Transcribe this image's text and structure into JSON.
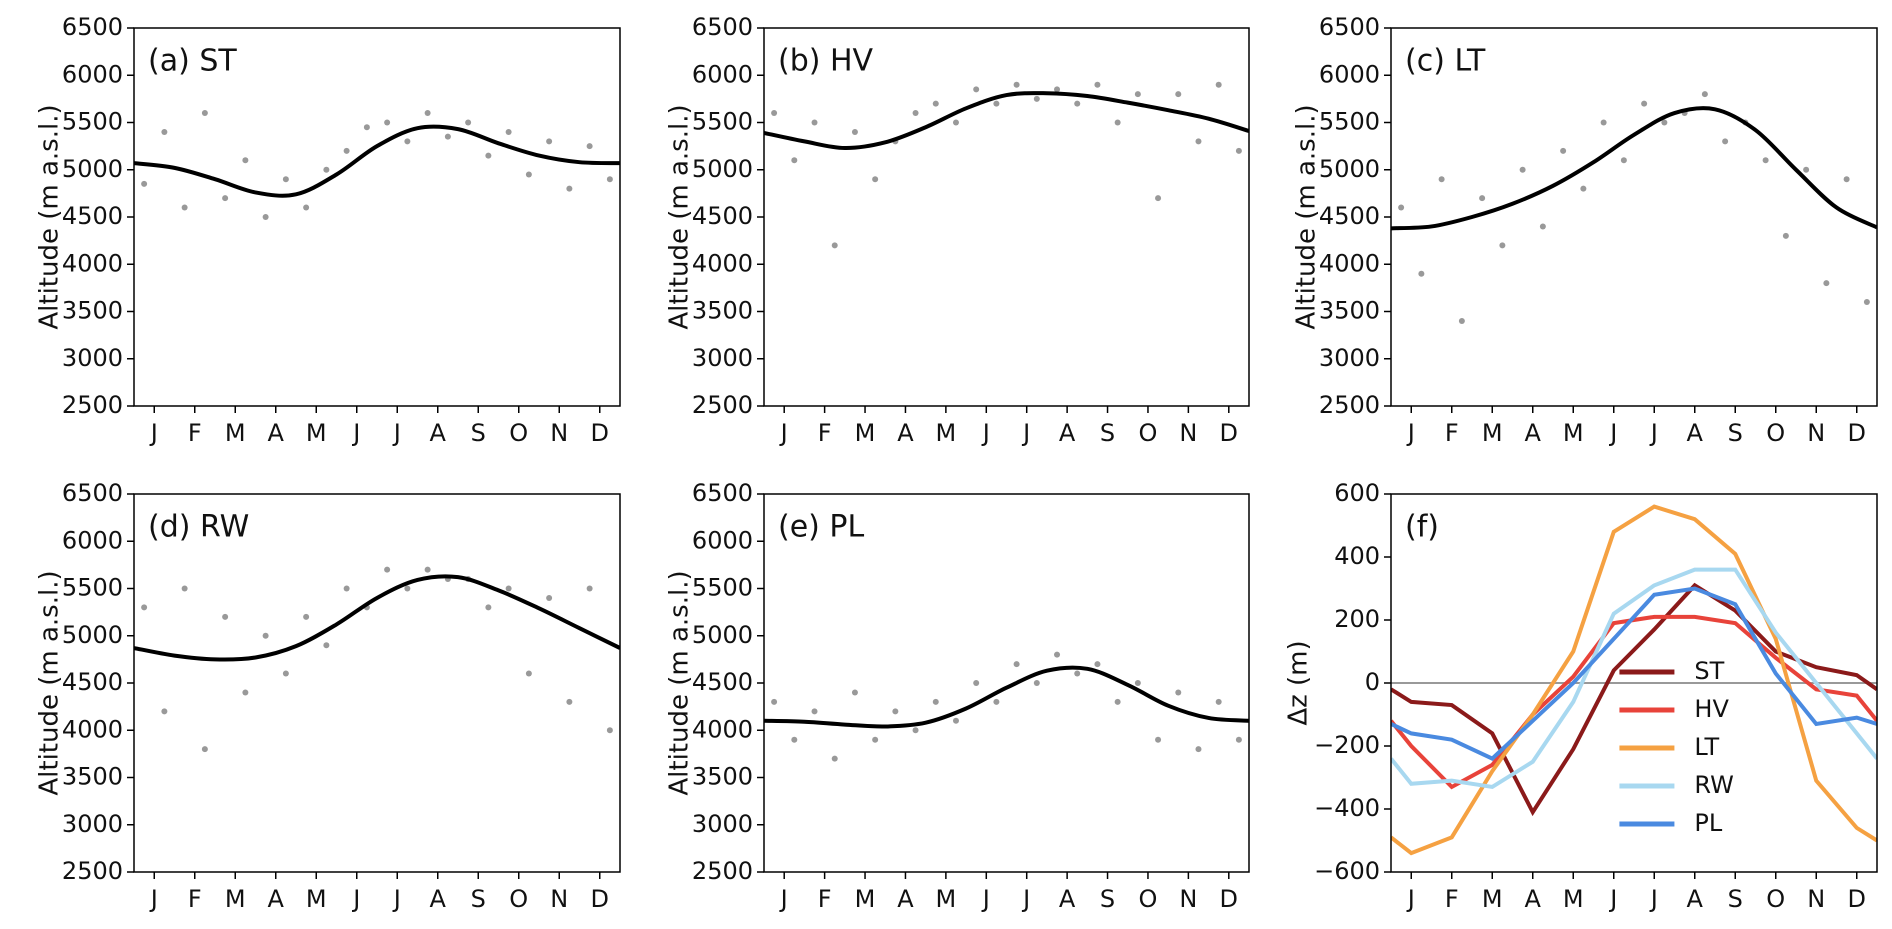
{
  "chart_data": [
    {
      "type": "scatter",
      "title": "(a) ST",
      "ylabel": "Altitude (m a.s.l.)",
      "xlim": [
        0,
        12
      ],
      "ylim": [
        2500,
        6500
      ],
      "xticks": [
        {
          "value": 0.5,
          "label": "J"
        },
        {
          "value": 1.5,
          "label": "F"
        },
        {
          "value": 2.5,
          "label": "M"
        },
        {
          "value": 3.5,
          "label": "A"
        },
        {
          "value": 4.5,
          "label": "M"
        },
        {
          "value": 5.5,
          "label": "J"
        },
        {
          "value": 6.5,
          "label": "J"
        },
        {
          "value": 7.5,
          "label": "A"
        },
        {
          "value": 8.5,
          "label": "S"
        },
        {
          "value": 9.5,
          "label": "O"
        },
        {
          "value": 10.5,
          "label": "N"
        },
        {
          "value": 11.5,
          "label": "D"
        }
      ],
      "yticks": [
        2500,
        3000,
        3500,
        4000,
        4500,
        5000,
        5500,
        6000,
        6500
      ],
      "series": [
        {
          "mode": "markers",
          "color": "#999999",
          "x": [
            0.25,
            0.75,
            1.25,
            1.75,
            2.25,
            2.75,
            3.25,
            3.75,
            4.25,
            4.75,
            5.25,
            5.75,
            6.25,
            6.75,
            7.25,
            7.75,
            8.25,
            8.75,
            9.25,
            9.75,
            10.25,
            10.75,
            11.25,
            11.75
          ],
          "values": [
            4850,
            5400,
            4600,
            5600,
            4700,
            5100,
            4500,
            4900,
            4600,
            5000,
            5200,
            5450,
            5500,
            5300,
            5600,
            5350,
            5500,
            5150,
            5400,
            4950,
            5300,
            4800,
            5250,
            4900
          ]
        },
        {
          "mode": "line",
          "color": "#000000",
          "x": [
            0,
            1,
            2,
            3,
            4,
            5,
            6,
            7,
            8,
            9,
            10,
            11,
            12
          ],
          "values": [
            5070,
            5020,
            4900,
            4760,
            4740,
            4950,
            5250,
            5440,
            5430,
            5280,
            5150,
            5080,
            5070
          ]
        }
      ]
    },
    {
      "type": "scatter",
      "title": "(b) HV",
      "ylabel": "Altitude (m a.s.l.)",
      "xlim": [
        0,
        12
      ],
      "ylim": [
        2500,
        6500
      ],
      "xticks": [
        {
          "value": 0.5,
          "label": "J"
        },
        {
          "value": 1.5,
          "label": "F"
        },
        {
          "value": 2.5,
          "label": "M"
        },
        {
          "value": 3.5,
          "label": "A"
        },
        {
          "value": 4.5,
          "label": "M"
        },
        {
          "value": 5.5,
          "label": "J"
        },
        {
          "value": 6.5,
          "label": "J"
        },
        {
          "value": 7.5,
          "label": "A"
        },
        {
          "value": 8.5,
          "label": "S"
        },
        {
          "value": 9.5,
          "label": "O"
        },
        {
          "value": 10.5,
          "label": "N"
        },
        {
          "value": 11.5,
          "label": "D"
        }
      ],
      "yticks": [
        2500,
        3000,
        3500,
        4000,
        4500,
        5000,
        5500,
        6000,
        6500
      ],
      "series": [
        {
          "mode": "markers",
          "color": "#999999",
          "x": [
            0.25,
            0.75,
            1.25,
            1.75,
            2.25,
            2.75,
            3.25,
            3.75,
            4.25,
            4.75,
            5.25,
            5.75,
            6.25,
            6.75,
            7.25,
            7.75,
            8.25,
            8.75,
            9.25,
            9.75,
            10.25,
            10.75,
            11.25,
            11.75
          ],
          "values": [
            5600,
            5100,
            5500,
            4200,
            5400,
            4900,
            5300,
            5600,
            5700,
            5500,
            5850,
            5700,
            5900,
            5750,
            5850,
            5700,
            5900,
            5500,
            5800,
            4700,
            5800,
            5300,
            5900,
            5200
          ]
        },
        {
          "mode": "line",
          "color": "#000000",
          "x": [
            0,
            1,
            2,
            3,
            4,
            5,
            6,
            7,
            8,
            9,
            10,
            11,
            12
          ],
          "values": [
            5390,
            5300,
            5230,
            5290,
            5450,
            5650,
            5790,
            5810,
            5780,
            5710,
            5630,
            5540,
            5410
          ]
        }
      ]
    },
    {
      "type": "scatter",
      "title": "(c) LT",
      "ylabel": "Altitude (m a.s.l.)",
      "xlim": [
        0,
        12
      ],
      "ylim": [
        2500,
        6500
      ],
      "xticks": [
        {
          "value": 0.5,
          "label": "J"
        },
        {
          "value": 1.5,
          "label": "F"
        },
        {
          "value": 2.5,
          "label": "M"
        },
        {
          "value": 3.5,
          "label": "A"
        },
        {
          "value": 4.5,
          "label": "M"
        },
        {
          "value": 5.5,
          "label": "J"
        },
        {
          "value": 6.5,
          "label": "J"
        },
        {
          "value": 7.5,
          "label": "A"
        },
        {
          "value": 8.5,
          "label": "S"
        },
        {
          "value": 9.5,
          "label": "O"
        },
        {
          "value": 10.5,
          "label": "N"
        },
        {
          "value": 11.5,
          "label": "D"
        }
      ],
      "yticks": [
        2500,
        3000,
        3500,
        4000,
        4500,
        5000,
        5500,
        6000,
        6500
      ],
      "series": [
        {
          "mode": "markers",
          "color": "#999999",
          "x": [
            0.25,
            0.75,
            1.25,
            1.75,
            2.25,
            2.75,
            3.25,
            3.75,
            4.25,
            4.75,
            5.25,
            5.75,
            6.25,
            6.75,
            7.25,
            7.75,
            8.25,
            8.75,
            9.25,
            9.75,
            10.25,
            10.75,
            11.25,
            11.75
          ],
          "values": [
            4600,
            3900,
            4900,
            3400,
            4700,
            4200,
            5000,
            4400,
            5200,
            4800,
            5500,
            5100,
            5700,
            5500,
            5600,
            5800,
            5300,
            5500,
            5100,
            4300,
            5000,
            3800,
            4900,
            3600
          ]
        },
        {
          "mode": "line",
          "color": "#000000",
          "x": [
            0,
            1,
            2,
            3,
            4,
            5,
            6,
            7,
            8,
            9,
            10,
            11,
            12
          ],
          "values": [
            4380,
            4400,
            4500,
            4640,
            4830,
            5080,
            5370,
            5600,
            5640,
            5420,
            5000,
            4600,
            4390
          ]
        }
      ]
    },
    {
      "type": "scatter",
      "title": "(d) RW",
      "ylabel": "Altitude (m a.s.l.)",
      "xlim": [
        0,
        12
      ],
      "ylim": [
        2500,
        6500
      ],
      "xticks": [
        {
          "value": 0.5,
          "label": "J"
        },
        {
          "value": 1.5,
          "label": "F"
        },
        {
          "value": 2.5,
          "label": "M"
        },
        {
          "value": 3.5,
          "label": "A"
        },
        {
          "value": 4.5,
          "label": "M"
        },
        {
          "value": 5.5,
          "label": "J"
        },
        {
          "value": 6.5,
          "label": "J"
        },
        {
          "value": 7.5,
          "label": "A"
        },
        {
          "value": 8.5,
          "label": "S"
        },
        {
          "value": 9.5,
          "label": "O"
        },
        {
          "value": 10.5,
          "label": "N"
        },
        {
          "value": 11.5,
          "label": "D"
        }
      ],
      "yticks": [
        2500,
        3000,
        3500,
        4000,
        4500,
        5000,
        5500,
        6000,
        6500
      ],
      "series": [
        {
          "mode": "markers",
          "color": "#999999",
          "x": [
            0.25,
            0.75,
            1.25,
            1.75,
            2.25,
            2.75,
            3.25,
            3.75,
            4.25,
            4.75,
            5.25,
            5.75,
            6.25,
            6.75,
            7.25,
            7.75,
            8.25,
            8.75,
            9.25,
            9.75,
            10.25,
            10.75,
            11.25,
            11.75
          ],
          "values": [
            5300,
            4200,
            5500,
            3800,
            5200,
            4400,
            5000,
            4600,
            5200,
            4900,
            5500,
            5300,
            5700,
            5500,
            5700,
            5600,
            5600,
            5300,
            5500,
            4600,
            5400,
            4300,
            5500,
            4000
          ]
        },
        {
          "mode": "line",
          "color": "#000000",
          "x": [
            0,
            1,
            2,
            3,
            4,
            5,
            6,
            7,
            8,
            9,
            10,
            11,
            12
          ],
          "values": [
            4870,
            4790,
            4750,
            4770,
            4890,
            5120,
            5400,
            5590,
            5620,
            5480,
            5290,
            5080,
            4870
          ]
        }
      ]
    },
    {
      "type": "scatter",
      "title": "(e) PL",
      "ylabel": "Altitude (m a.s.l.)",
      "xlim": [
        0,
        12
      ],
      "ylim": [
        2500,
        6500
      ],
      "xticks": [
        {
          "value": 0.5,
          "label": "J"
        },
        {
          "value": 1.5,
          "label": "F"
        },
        {
          "value": 2.5,
          "label": "M"
        },
        {
          "value": 3.5,
          "label": "A"
        },
        {
          "value": 4.5,
          "label": "M"
        },
        {
          "value": 5.5,
          "label": "J"
        },
        {
          "value": 6.5,
          "label": "J"
        },
        {
          "value": 7.5,
          "label": "A"
        },
        {
          "value": 8.5,
          "label": "S"
        },
        {
          "value": 9.5,
          "label": "O"
        },
        {
          "value": 10.5,
          "label": "N"
        },
        {
          "value": 11.5,
          "label": "D"
        }
      ],
      "yticks": [
        2500,
        3000,
        3500,
        4000,
        4500,
        5000,
        5500,
        6000,
        6500
      ],
      "series": [
        {
          "mode": "markers",
          "color": "#999999",
          "x": [
            0.25,
            0.75,
            1.25,
            1.75,
            2.25,
            2.75,
            3.25,
            3.75,
            4.25,
            4.75,
            5.25,
            5.75,
            6.25,
            6.75,
            7.25,
            7.75,
            8.25,
            8.75,
            9.25,
            9.75,
            10.25,
            10.75,
            11.25,
            11.75
          ],
          "values": [
            4300,
            3900,
            4200,
            3700,
            4400,
            3900,
            4200,
            4000,
            4300,
            4100,
            4500,
            4300,
            4700,
            4500,
            4800,
            4600,
            4700,
            4300,
            4500,
            3900,
            4400,
            3800,
            4300,
            3900
          ]
        },
        {
          "mode": "line",
          "color": "#000000",
          "x": [
            0,
            1,
            2,
            3,
            4,
            5,
            6,
            7,
            8,
            9,
            10,
            11,
            12
          ],
          "values": [
            4100,
            4090,
            4060,
            4040,
            4080,
            4230,
            4450,
            4630,
            4650,
            4480,
            4260,
            4130,
            4100
          ]
        }
      ]
    },
    {
      "type": "line",
      "title": "(f)",
      "ylabel": "Δz (m)",
      "xlim": [
        0,
        12
      ],
      "ylim": [
        -600,
        600
      ],
      "zero_line": true,
      "legend": "lower center",
      "xticks": [
        {
          "value": 0.5,
          "label": "J"
        },
        {
          "value": 1.5,
          "label": "F"
        },
        {
          "value": 2.5,
          "label": "M"
        },
        {
          "value": 3.5,
          "label": "A"
        },
        {
          "value": 4.5,
          "label": "M"
        },
        {
          "value": 5.5,
          "label": "J"
        },
        {
          "value": 6.5,
          "label": "J"
        },
        {
          "value": 7.5,
          "label": "A"
        },
        {
          "value": 8.5,
          "label": "S"
        },
        {
          "value": 9.5,
          "label": "O"
        },
        {
          "value": 10.5,
          "label": "N"
        },
        {
          "value": 11.5,
          "label": "D"
        }
      ],
      "yticks": [
        {
          "value": -600,
          "label": "−600"
        },
        {
          "value": -400,
          "label": "−400"
        },
        {
          "value": -200,
          "label": "−200"
        },
        0,
        200,
        400,
        600
      ],
      "x": [
        0,
        0.5,
        1.5,
        2.5,
        3.5,
        4.5,
        5.5,
        6.5,
        7.5,
        8.5,
        9.5,
        10.5,
        11.5,
        12
      ],
      "series": [
        {
          "name": "ST",
          "color": "#8b1a1a",
          "values": [
            -20,
            -60,
            -70,
            -160,
            -410,
            -210,
            40,
            170,
            310,
            230,
            100,
            50,
            25,
            -20
          ]
        },
        {
          "name": "HV",
          "color": "#e8433a",
          "values": [
            -120,
            -200,
            -330,
            -260,
            -100,
            20,
            190,
            210,
            210,
            190,
            80,
            -20,
            -40,
            -120
          ]
        },
        {
          "name": "LT",
          "color": "#f5a142",
          "values": [
            -490,
            -540,
            -490,
            -280,
            -100,
            100,
            480,
            560,
            520,
            410,
            140,
            -310,
            -460,
            -500
          ]
        },
        {
          "name": "RW",
          "color": "#a8d8f0",
          "values": [
            -240,
            -320,
            -310,
            -330,
            -250,
            -60,
            220,
            310,
            360,
            360,
            160,
            0,
            -160,
            -240
          ]
        },
        {
          "name": "PL",
          "color": "#4a8ae0",
          "values": [
            -130,
            -160,
            -180,
            -240,
            -120,
            0,
            140,
            280,
            300,
            250,
            30,
            -130,
            -110,
            -130
          ]
        }
      ]
    }
  ]
}
